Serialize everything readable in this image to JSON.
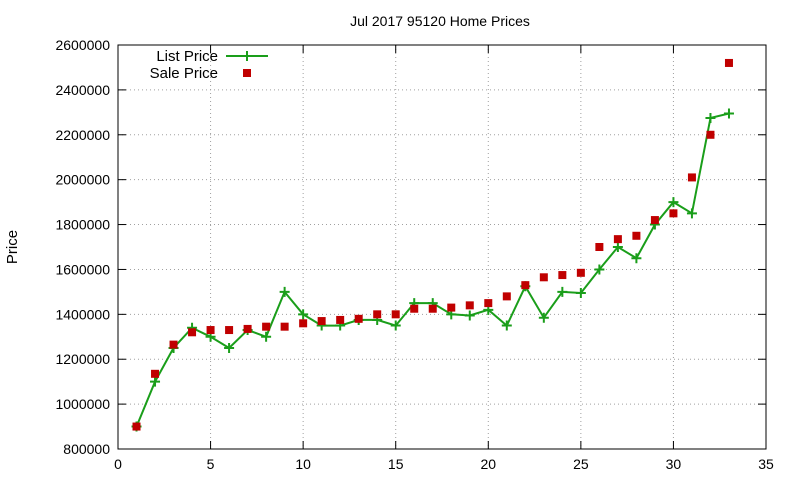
{
  "chart_data": {
    "type": "scatter",
    "title": "Jul 2017 95120 Home Prices",
    "xlabel": "",
    "ylabel": "Price",
    "xlim": [
      0,
      35
    ],
    "ylim": [
      800000,
      2600000
    ],
    "xticks": [
      0,
      5,
      10,
      15,
      20,
      25,
      30,
      35
    ],
    "yticks": [
      800000,
      1000000,
      1200000,
      1400000,
      1600000,
      1800000,
      2000000,
      2200000,
      2400000,
      2600000
    ],
    "grid": true,
    "legend_position": "top-left",
    "series": [
      {
        "name": "List Price",
        "style": "line-plus",
        "color": "#1a9e1a",
        "x": [
          1,
          2,
          3,
          4,
          5,
          6,
          7,
          8,
          9,
          10,
          11,
          12,
          13,
          14,
          15,
          16,
          17,
          18,
          19,
          20,
          21,
          22,
          23,
          24,
          25,
          26,
          27,
          28,
          29,
          30,
          31,
          32,
          33
        ],
        "y": [
          900000,
          1100000,
          1250000,
          1340000,
          1300000,
          1250000,
          1330000,
          1300000,
          1500000,
          1400000,
          1350000,
          1350000,
          1375000,
          1375000,
          1350000,
          1450000,
          1450000,
          1400000,
          1395000,
          1420000,
          1350000,
          1525000,
          1385000,
          1500000,
          1495000,
          1600000,
          1700000,
          1650000,
          1800000,
          1900000,
          1850000,
          2275000,
          2295000
        ]
      },
      {
        "name": "Sale Price",
        "style": "square",
        "color": "#c00000",
        "x": [
          1,
          2,
          3,
          4,
          5,
          6,
          7,
          8,
          9,
          10,
          11,
          12,
          13,
          14,
          15,
          16,
          17,
          18,
          19,
          20,
          21,
          22,
          23,
          24,
          25,
          26,
          27,
          28,
          29,
          30,
          31,
          32,
          33
        ],
        "y": [
          900000,
          1135000,
          1265000,
          1320000,
          1330000,
          1330000,
          1335000,
          1345000,
          1345000,
          1360000,
          1370000,
          1375000,
          1380000,
          1400000,
          1400000,
          1425000,
          1425000,
          1430000,
          1440000,
          1450000,
          1480000,
          1530000,
          1565000,
          1575000,
          1585000,
          1700000,
          1735000,
          1750000,
          1820000,
          1850000,
          2010000,
          2200000,
          2520000
        ]
      }
    ]
  }
}
